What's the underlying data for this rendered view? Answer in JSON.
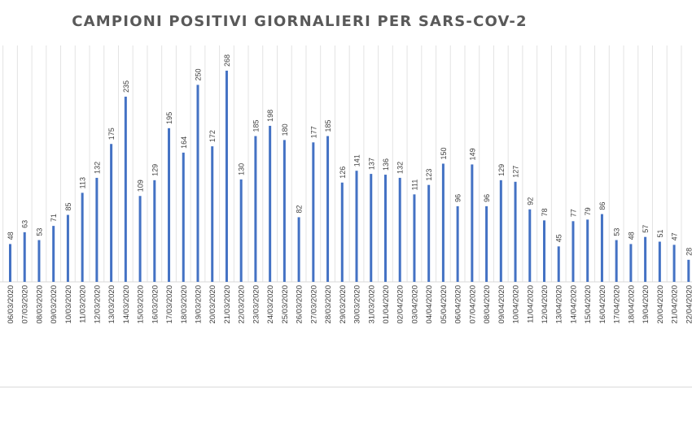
{
  "chart_data": {
    "type": "bar",
    "title": "CAMPIONI POSITIVI GIORNALIERI PER SARS-COV-2",
    "xlabel": "",
    "ylabel": "",
    "ylim": [
      0,
      290
    ],
    "grid": "vertical",
    "bar_color": "#4472c4",
    "categories": [
      "06/03/2020",
      "07/03/2020",
      "08/03/2020",
      "09/03/2020",
      "10/03/2020",
      "11/03/2020",
      "12/03/2020",
      "13/03/2020",
      "14/03/2020",
      "15/03/2020",
      "16/03/2020",
      "17/03/2020",
      "18/03/2020",
      "19/03/2020",
      "20/03/2020",
      "21/03/2020",
      "22/03/2020",
      "23/03/2020",
      "24/03/2020",
      "25/03/2020",
      "26/03/2020",
      "27/03/2020",
      "28/03/2020",
      "29/03/2020",
      "30/03/2020",
      "31/03/2020",
      "01/04/2020",
      "02/04/2020",
      "03/04/2020",
      "04/04/2020",
      "05/04/2020",
      "06/04/2020",
      "07/04/2020",
      "08/04/2020",
      "09/04/2020",
      "10/04/2020",
      "11/04/2020",
      "12/04/2020",
      "13/04/2020",
      "14/04/2020",
      "15/04/2020",
      "16/04/2020",
      "17/04/2020",
      "18/04/2020",
      "19/04/2020",
      "20/04/2020",
      "21/04/2020",
      "22/04/2020"
    ],
    "values": [
      48,
      63,
      53,
      71,
      85,
      113,
      132,
      175,
      235,
      109,
      129,
      195,
      164,
      250,
      172,
      268,
      130,
      185,
      198,
      180,
      82,
      177,
      185,
      126,
      141,
      137,
      136,
      132,
      111,
      123,
      150,
      96,
      149,
      96,
      129,
      127,
      92,
      78,
      45,
      77,
      79,
      86,
      53,
      48,
      57,
      51,
      47,
      28
    ]
  }
}
